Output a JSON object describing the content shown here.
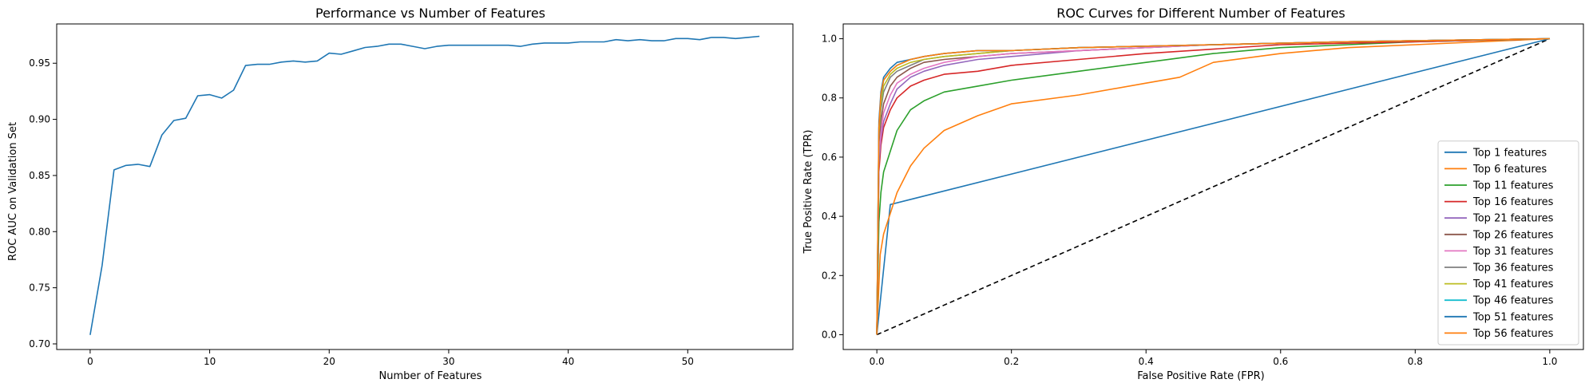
{
  "chart_data": [
    {
      "type": "line",
      "title": "Performance vs Number of Features",
      "xlabel": "Number of Features",
      "ylabel": "ROC AUC on Validation Set",
      "xlim": [
        -2.8,
        58.8
      ],
      "ylim": [
        0.695,
        0.985
      ],
      "xticks": [
        0,
        10,
        20,
        30,
        40,
        50
      ],
      "yticks": [
        0.7,
        0.75,
        0.8,
        0.85,
        0.9,
        0.95
      ],
      "ytick_labels": [
        "0.70",
        "0.75",
        "0.80",
        "0.85",
        "0.90",
        "0.95"
      ],
      "grid": false,
      "series": [
        {
          "color": "#1f77b4",
          "x": [
            0,
            1,
            2,
            3,
            4,
            5,
            6,
            7,
            8,
            9,
            10,
            11,
            12,
            13,
            14,
            15,
            16,
            17,
            18,
            19,
            20,
            21,
            22,
            23,
            24,
            25,
            26,
            27,
            28,
            29,
            30,
            31,
            32,
            33,
            34,
            35,
            36,
            37,
            38,
            39,
            40,
            41,
            42,
            43,
            44,
            45,
            46,
            47,
            48,
            49,
            50,
            51,
            52,
            53,
            54,
            55,
            56
          ],
          "y": [
            0.708,
            0.77,
            0.855,
            0.859,
            0.86,
            0.858,
            0.886,
            0.899,
            0.901,
            0.921,
            0.922,
            0.919,
            0.926,
            0.948,
            0.949,
            0.949,
            0.951,
            0.952,
            0.951,
            0.952,
            0.959,
            0.958,
            0.961,
            0.964,
            0.965,
            0.967,
            0.967,
            0.965,
            0.963,
            0.965,
            0.966,
            0.966,
            0.966,
            0.966,
            0.966,
            0.966,
            0.965,
            0.967,
            0.968,
            0.968,
            0.968,
            0.969,
            0.969,
            0.969,
            0.971,
            0.97,
            0.971,
            0.97,
            0.97,
            0.972,
            0.972,
            0.971,
            0.973,
            0.973,
            0.972,
            0.973,
            0.974
          ]
        }
      ]
    },
    {
      "type": "line",
      "title": "ROC Curves for Different Number of Features",
      "xlabel": "False Positive Rate (FPR)",
      "ylabel": "True Positive Rate (TPR)",
      "xlim": [
        -0.05,
        1.05
      ],
      "ylim": [
        -0.05,
        1.05
      ],
      "xticks": [
        0.0,
        0.2,
        0.4,
        0.6,
        0.8,
        1.0
      ],
      "yticks": [
        0.0,
        0.2,
        0.4,
        0.6,
        0.8,
        1.0
      ],
      "xtick_labels": [
        "0.0",
        "0.2",
        "0.4",
        "0.6",
        "0.8",
        "1.0"
      ],
      "ytick_labels": [
        "0.0",
        "0.2",
        "0.4",
        "0.6",
        "0.8",
        "1.0"
      ],
      "grid": false,
      "legend_position": "lower-right",
      "diagonal": {
        "x": [
          0,
          1
        ],
        "y": [
          0,
          1
        ],
        "color": "#000000",
        "style": "dashed"
      },
      "series": [
        {
          "name": "Top 1 features",
          "color": "#1f77b4",
          "x": [
            0,
            0.02,
            1.0
          ],
          "y": [
            0,
            0.44,
            1.0
          ]
        },
        {
          "name": "Top 6 features",
          "color": "#ff7f0e",
          "x": [
            0,
            0.005,
            0.01,
            0.02,
            0.03,
            0.05,
            0.07,
            0.1,
            0.15,
            0.2,
            0.3,
            0.4,
            0.45,
            0.5,
            0.6,
            0.7,
            0.8,
            1.0
          ],
          "y": [
            0,
            0.27,
            0.34,
            0.41,
            0.48,
            0.57,
            0.63,
            0.69,
            0.74,
            0.78,
            0.81,
            0.85,
            0.87,
            0.92,
            0.95,
            0.97,
            0.98,
            1.0
          ]
        },
        {
          "name": "Top 11 features",
          "color": "#2ca02c",
          "x": [
            0,
            0.003,
            0.006,
            0.01,
            0.02,
            0.03,
            0.05,
            0.07,
            0.1,
            0.15,
            0.2,
            0.3,
            0.4,
            0.5,
            0.6,
            0.8,
            1.0
          ],
          "y": [
            0,
            0.38,
            0.48,
            0.55,
            0.62,
            0.69,
            0.76,
            0.79,
            0.82,
            0.84,
            0.86,
            0.89,
            0.92,
            0.95,
            0.97,
            0.99,
            1.0
          ]
        },
        {
          "name": "Top 16 features",
          "color": "#d62728",
          "x": [
            0,
            0.003,
            0.006,
            0.01,
            0.02,
            0.03,
            0.05,
            0.07,
            0.1,
            0.15,
            0.2,
            0.3,
            0.4,
            0.6,
            0.8,
            1.0
          ],
          "y": [
            0,
            0.55,
            0.64,
            0.7,
            0.76,
            0.8,
            0.84,
            0.86,
            0.88,
            0.89,
            0.91,
            0.93,
            0.95,
            0.98,
            0.99,
            1.0
          ]
        },
        {
          "name": "Top 21 features",
          "color": "#9467bd",
          "x": [
            0,
            0.003,
            0.006,
            0.01,
            0.02,
            0.03,
            0.05,
            0.07,
            0.1,
            0.15,
            0.2,
            0.3,
            0.5,
            0.7,
            1.0
          ],
          "y": [
            0,
            0.58,
            0.66,
            0.72,
            0.78,
            0.83,
            0.87,
            0.89,
            0.91,
            0.93,
            0.94,
            0.96,
            0.98,
            0.99,
            1.0
          ]
        },
        {
          "name": "Top 26 features",
          "color": "#8c564b",
          "x": [
            0,
            0.003,
            0.006,
            0.01,
            0.02,
            0.03,
            0.05,
            0.07,
            0.1,
            0.15,
            0.2,
            0.3,
            0.5,
            0.7,
            1.0
          ],
          "y": [
            0,
            0.62,
            0.72,
            0.78,
            0.84,
            0.87,
            0.9,
            0.92,
            0.93,
            0.94,
            0.95,
            0.96,
            0.98,
            0.99,
            1.0
          ]
        },
        {
          "name": "Top 31 features",
          "color": "#e377c2",
          "x": [
            0,
            0.003,
            0.006,
            0.01,
            0.02,
            0.03,
            0.05,
            0.07,
            0.1,
            0.15,
            0.2,
            0.3,
            0.5,
            0.7,
            1.0
          ],
          "y": [
            0,
            0.6,
            0.68,
            0.75,
            0.81,
            0.85,
            0.88,
            0.9,
            0.92,
            0.94,
            0.95,
            0.96,
            0.98,
            0.99,
            1.0
          ]
        },
        {
          "name": "Top 36 features",
          "color": "#7f7f7f",
          "x": [
            0,
            0.003,
            0.006,
            0.01,
            0.02,
            0.03,
            0.05,
            0.07,
            0.1,
            0.15,
            0.2,
            0.3,
            0.5,
            0.7,
            1.0
          ],
          "y": [
            0,
            0.66,
            0.76,
            0.82,
            0.87,
            0.89,
            0.91,
            0.93,
            0.94,
            0.95,
            0.96,
            0.97,
            0.98,
            0.99,
            1.0
          ]
        },
        {
          "name": "Top 41 features",
          "color": "#bcbd22",
          "x": [
            0,
            0.003,
            0.006,
            0.01,
            0.02,
            0.03,
            0.05,
            0.07,
            0.1,
            0.15,
            0.2,
            0.3,
            0.5,
            0.7,
            1.0
          ],
          "y": [
            0,
            0.68,
            0.78,
            0.84,
            0.88,
            0.9,
            0.92,
            0.93,
            0.94,
            0.95,
            0.96,
            0.97,
            0.98,
            0.99,
            1.0
          ]
        },
        {
          "name": "Top 46 features",
          "color": "#17becf",
          "x": [
            0,
            0.003,
            0.006,
            0.01,
            0.02,
            0.03,
            0.05,
            0.07,
            0.1,
            0.15,
            0.2,
            0.3,
            0.5,
            0.7,
            1.0
          ],
          "y": [
            0,
            0.7,
            0.8,
            0.86,
            0.89,
            0.91,
            0.93,
            0.94,
            0.95,
            0.96,
            0.96,
            0.97,
            0.98,
            0.99,
            1.0
          ]
        },
        {
          "name": "Top 51 features",
          "color": "#1f77b4",
          "x": [
            0,
            0.003,
            0.006,
            0.01,
            0.02,
            0.03,
            0.05,
            0.07,
            0.1,
            0.15,
            0.2,
            0.3,
            0.5,
            0.7,
            1.0
          ],
          "y": [
            0,
            0.72,
            0.82,
            0.87,
            0.9,
            0.92,
            0.93,
            0.94,
            0.95,
            0.96,
            0.96,
            0.97,
            0.98,
            0.99,
            1.0
          ]
        },
        {
          "name": "Top 56 features",
          "color": "#ff7f0e",
          "x": [
            0,
            0.003,
            0.006,
            0.01,
            0.02,
            0.03,
            0.05,
            0.07,
            0.1,
            0.15,
            0.2,
            0.3,
            0.5,
            0.7,
            1.0
          ],
          "y": [
            0,
            0.7,
            0.81,
            0.86,
            0.89,
            0.91,
            0.93,
            0.94,
            0.95,
            0.96,
            0.96,
            0.97,
            0.98,
            0.99,
            1.0
          ]
        }
      ]
    }
  ]
}
